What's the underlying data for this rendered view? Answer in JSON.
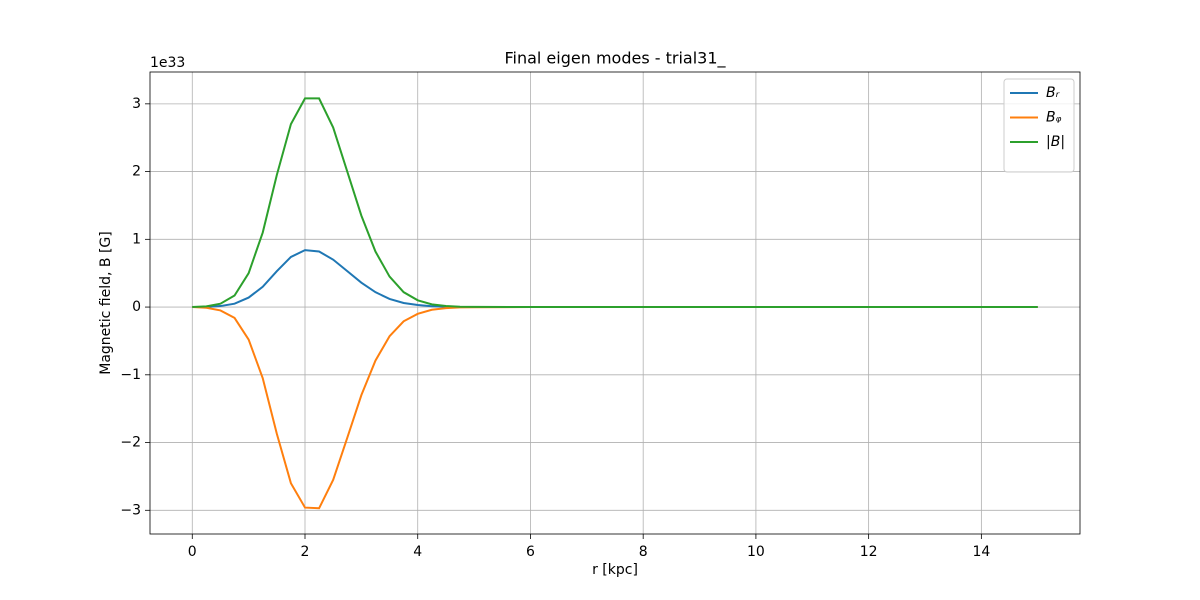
{
  "chart_data": {
    "type": "line",
    "title": "Final eigen modes - trial31_",
    "x_label": "r [kpc]",
    "y_label": "Magnetic field, B [G]",
    "y_offset_label": "1e33",
    "x": [
      0,
      0.25,
      0.5,
      0.75,
      1.0,
      1.25,
      1.5,
      1.75,
      2.0,
      2.25,
      2.5,
      2.75,
      3.0,
      3.25,
      3.5,
      3.75,
      4.0,
      4.25,
      4.5,
      4.75,
      5.0,
      6,
      7,
      8,
      9,
      10,
      11,
      12,
      13,
      14,
      15
    ],
    "series": [
      {
        "name": "Bᵣ",
        "color": "#1f77b4",
        "values": [
          0,
          0.003,
          0.015,
          0.05,
          0.14,
          0.3,
          0.53,
          0.74,
          0.84,
          0.82,
          0.7,
          0.53,
          0.36,
          0.22,
          0.12,
          0.06,
          0.03,
          0.012,
          0.004,
          0.001,
          0,
          0,
          0,
          0,
          0,
          0,
          0,
          0,
          0,
          0,
          0
        ]
      },
      {
        "name": "Bᵩ",
        "color": "#ff7f0e",
        "values": [
          0,
          -0.01,
          -0.05,
          -0.16,
          -0.48,
          -1.05,
          -1.87,
          -2.6,
          -2.96,
          -2.97,
          -2.55,
          -1.93,
          -1.3,
          -0.79,
          -0.43,
          -0.21,
          -0.1,
          -0.04,
          -0.015,
          -0.005,
          -0.002,
          0,
          0,
          0,
          0,
          0,
          0,
          0,
          0,
          0,
          0
        ]
      },
      {
        "name": "|B|",
        "color": "#2ca02c",
        "values": [
          0,
          0.01,
          0.05,
          0.17,
          0.5,
          1.1,
          1.95,
          2.7,
          3.08,
          3.08,
          2.65,
          2.0,
          1.35,
          0.82,
          0.45,
          0.22,
          0.1,
          0.04,
          0.015,
          0.005,
          0.002,
          0,
          0,
          0,
          0,
          0,
          0,
          0,
          0,
          0,
          0
        ]
      }
    ],
    "xlim": [
      -0.75,
      15.75
    ],
    "xticks": [
      0,
      2,
      4,
      6,
      8,
      10,
      12,
      14
    ],
    "ylim": [
      -3.35,
      3.47
    ],
    "yticks": [
      {
        "value": -3,
        "label": "−3"
      },
      {
        "value": -2,
        "label": "−2"
      },
      {
        "value": -1,
        "label": "−1"
      },
      0,
      1,
      2,
      3
    ],
    "grid": true,
    "legend": "upper right"
  }
}
